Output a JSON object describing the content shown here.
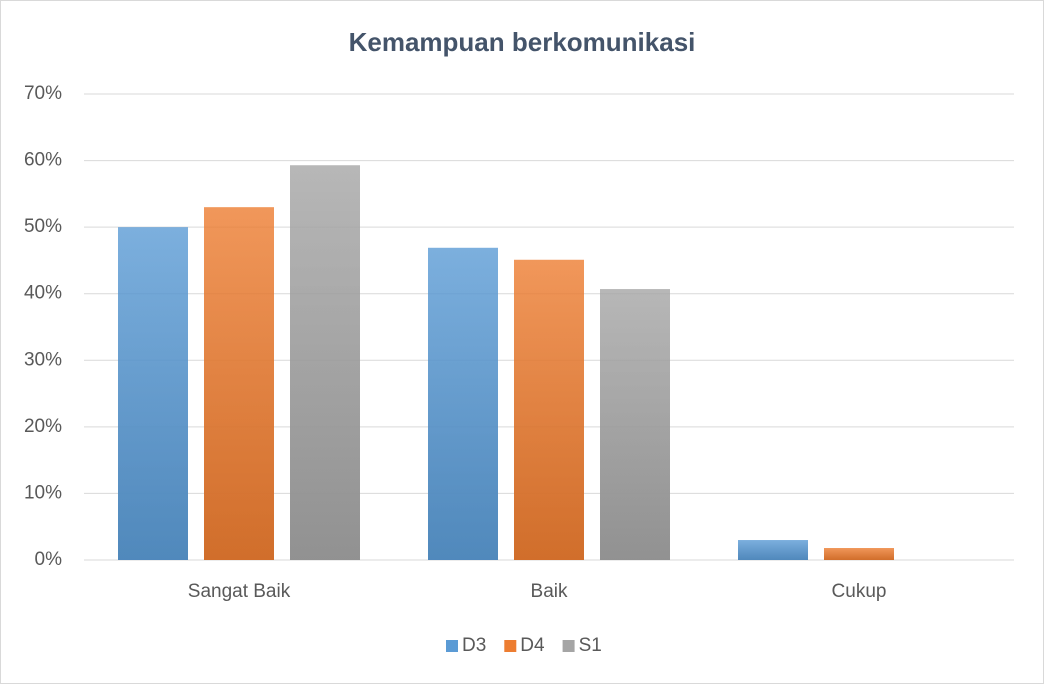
{
  "chart_data": {
    "type": "bar",
    "title": "Kemampuan berkomunikasi",
    "categories": [
      "Sangat Baik",
      "Baik",
      "Cukup"
    ],
    "series": [
      {
        "name": "D3",
        "color": "#5b9bd5",
        "values": [
          50.0,
          46.9,
          3.0
        ]
      },
      {
        "name": "D4",
        "color": "#ed7d31",
        "values": [
          53.0,
          45.1,
          1.8
        ]
      },
      {
        "name": "S1",
        "color": "#a5a5a5",
        "values": [
          59.3,
          40.7,
          0
        ]
      }
    ],
    "ylim": [
      0,
      70
    ],
    "yticks": [
      {
        "value": 0,
        "label": "0%"
      },
      {
        "value": 10,
        "label": "10%"
      },
      {
        "value": 20,
        "label": "20%"
      },
      {
        "value": 30,
        "label": "30%"
      },
      {
        "value": 40,
        "label": "40%"
      },
      {
        "value": 50,
        "label": "50%"
      },
      {
        "value": 60,
        "label": "60%"
      },
      {
        "value": 70,
        "label": "70%"
      }
    ],
    "grid": true,
    "legend": "bottom"
  }
}
